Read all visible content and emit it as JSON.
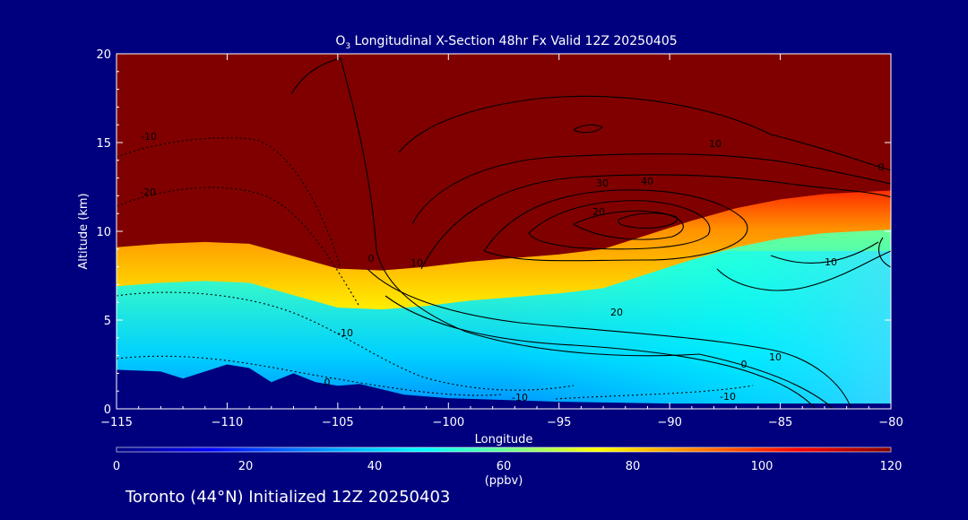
{
  "chart_data": {
    "type": "heatmap",
    "title": {
      "species_base": "O",
      "species_sub": "3",
      "rest": " Longitudinal X-Section 48hr  Fx Valid 12Z 20250405"
    },
    "xlabel": "Longitude",
    "ylabel": "Altitude (km)",
    "xlim": [
      -115,
      -80
    ],
    "ylim": [
      0,
      20
    ],
    "xticks": [
      -115,
      -110,
      -105,
      -100,
      -95,
      -90,
      -85,
      -80
    ],
    "xtick_labels": [
      "−115",
      "−110",
      "−105",
      "−100",
      "−95",
      "−90",
      "−85",
      "−80"
    ],
    "yticks": [
      0,
      5,
      10,
      15,
      20
    ],
    "ytick_labels": [
      "0",
      "5",
      "10",
      "15",
      "20"
    ],
    "colorbar": {
      "label": "(ppbv)",
      "range": [
        0,
        120
      ],
      "ticks": [
        0,
        20,
        40,
        60,
        80,
        100,
        120
      ],
      "tick_labels": [
        "0",
        "20",
        "40",
        "60",
        "80",
        "100",
        "120"
      ]
    },
    "tropopause_km": [
      [
        -115,
        9.1
      ],
      [
        -113,
        9.3
      ],
      [
        -111,
        9.4
      ],
      [
        -109,
        9.3
      ],
      [
        -107,
        8.6
      ],
      [
        -105,
        7.9
      ],
      [
        -103,
        7.8
      ],
      [
        -101,
        8.0
      ],
      [
        -99,
        8.3
      ],
      [
        -97,
        8.5
      ],
      [
        -95,
        8.7
      ],
      [
        -93,
        9.0
      ],
      [
        -91,
        9.8
      ],
      [
        -89,
        10.6
      ],
      [
        -87,
        11.3
      ],
      [
        -85,
        11.8
      ],
      [
        -83,
        12.1
      ],
      [
        -80,
        12.3
      ]
    ],
    "surface_km": [
      [
        -115,
        2.2
      ],
      [
        -113,
        2.1
      ],
      [
        -112,
        1.7
      ],
      [
        -111,
        2.1
      ],
      [
        -110,
        2.5
      ],
      [
        -109,
        2.3
      ],
      [
        -108,
        1.5
      ],
      [
        -107,
        2.0
      ],
      [
        -106,
        1.5
      ],
      [
        -105,
        1.3
      ],
      [
        -104,
        1.4
      ],
      [
        -103,
        1.1
      ],
      [
        -102,
        0.8
      ],
      [
        -100,
        0.6
      ],
      [
        -95,
        0.4
      ],
      [
        -90,
        0.3
      ],
      [
        -85,
        0.3
      ],
      [
        -80,
        0.3
      ]
    ],
    "wind_contours_labels": [
      "-10",
      "-20",
      "-10",
      "0",
      "-10",
      "0",
      "10",
      "20",
      "30",
      "40",
      "20",
      "10",
      "0",
      "-10",
      "10",
      "10",
      "0"
    ],
    "footer": "Toronto (44°N) Initialized 12Z 20250403"
  }
}
